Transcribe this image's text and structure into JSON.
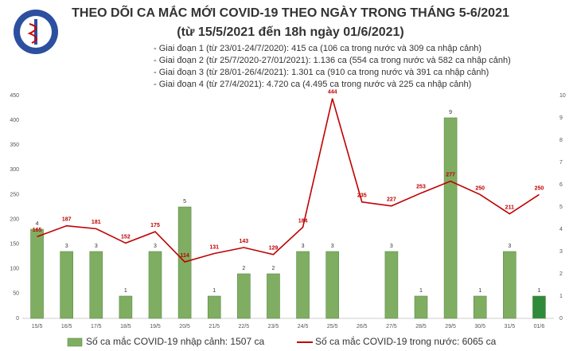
{
  "chart_data": {
    "type": "combo",
    "title": "THEO DÕI CA MẮC MỚI COVID-19 THEO NGÀY TRONG THÁNG 5-6/2021",
    "subtitle": "(từ 15/5/2021 đến 18h ngày 01/6/2021)",
    "notes": [
      "- Giai đoạn 1 (từ 23/01-24/7/2020): 415 ca (106 ca trong nước và 309 ca nhập cảnh)",
      "- Giai đoạn 2 (từ 25/7/2020-27/01/2021): 1.136 ca (554 ca trong nước và 582 ca nhập cảnh)",
      "- Giai đoạn 3 (từ 28/01-26/4/2021): 1.301 ca (910 ca trong nước và 391 ca nhập cảnh)",
      "- Giai đoạn 4 (từ 27/4/2021): 4.720 ca (4.495 ca trong nước và 225 ca nhập cảnh)"
    ],
    "categories": [
      "15/5",
      "16/5",
      "17/5",
      "18/5",
      "19/5",
      "20/5",
      "21/5",
      "22/5",
      "23/5",
      "24/5",
      "25/5",
      "26/5",
      "27/5",
      "28/5",
      "29/5",
      "30/5",
      "31/5",
      "01/6"
    ],
    "series": [
      {
        "name": "Số ca mắc COVID-19 nhập cảnh: 1507 ca",
        "kind": "bar",
        "axis": "y2",
        "color": "#7fae62",
        "colors": [
          "#7fae62",
          "#7fae62",
          "#7fae62",
          "#7fae62",
          "#7fae62",
          "#7fae62",
          "#7fae62",
          "#7fae62",
          "#7fae62",
          "#7fae62",
          "#7fae62",
          "#7fae62",
          "#7fae62",
          "#7fae62",
          "#7fae62",
          "#7fae62",
          "#7fae62",
          "#2f8a3a"
        ],
        "values": [
          4,
          3,
          3,
          1,
          3,
          5,
          1,
          2,
          2,
          3,
          3,
          null,
          3,
          1,
          9,
          1,
          3,
          1
        ]
      },
      {
        "name": "Số ca mắc COVID-19 trong nước: 6065 ca",
        "kind": "line",
        "axis": "y",
        "color": "#c00000",
        "values": [
          165,
          187,
          181,
          152,
          175,
          114,
          131,
          143,
          129,
          184,
          444,
          235,
          227,
          253,
          277,
          250,
          211,
          250
        ]
      }
    ],
    "ylim": [
      0,
      450
    ],
    "yticks": [
      0,
      50,
      100,
      150,
      200,
      250,
      300,
      350,
      400,
      450
    ],
    "y2lim": [
      0,
      10
    ],
    "y2ticks": [
      0,
      1,
      2,
      3,
      4,
      5,
      6,
      7,
      8,
      9,
      10
    ]
  }
}
